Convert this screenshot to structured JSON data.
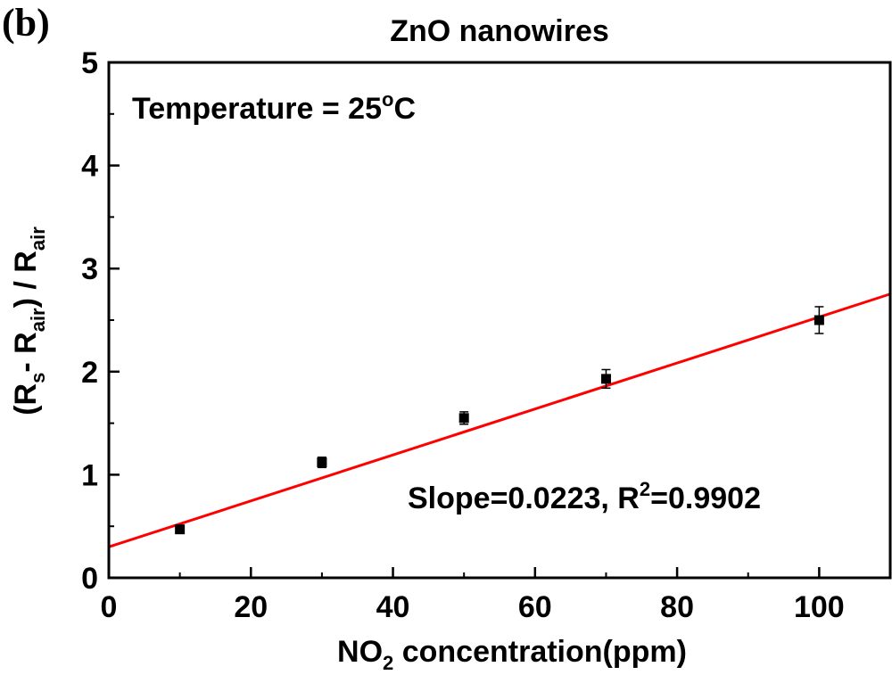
{
  "panel_label": "(b)",
  "chart_data": {
    "type": "scatter",
    "title": "ZnO nanowires",
    "annotation": "Temperature = 25",
    "annotation_deg": "o",
    "annotation_unit": "C",
    "fit_text_a": "Slope=0.0223, R",
    "fit_text_sup": "2",
    "fit_text_b": "=0.9902",
    "xlabel_a": "NO",
    "xlabel_sub": "2",
    "xlabel_b": " concentration(ppm)",
    "ylabel": {
      "p1": "(R",
      "s1": "s",
      "p2": "- R",
      "s2": "air",
      "p3": ") / R",
      "s3": "air"
    },
    "xlim": [
      0,
      110
    ],
    "ylim": [
      0,
      5
    ],
    "xticks": [
      0,
      20,
      40,
      60,
      80,
      100
    ],
    "yticks": [
      0,
      1,
      2,
      3,
      4,
      5
    ],
    "points": [
      {
        "x": 10,
        "y": 0.47,
        "err": 0.03
      },
      {
        "x": 30,
        "y": 1.12,
        "err": 0.05
      },
      {
        "x": 50,
        "y": 1.55,
        "err": 0.06
      },
      {
        "x": 70,
        "y": 1.93,
        "err": 0.09
      },
      {
        "x": 100,
        "y": 2.5,
        "err": 0.13
      }
    ],
    "fit": {
      "slope": 0.0223,
      "intercept": 0.3,
      "r2": 0.9902,
      "color": "#ff0000"
    },
    "marker_color": "#000000",
    "grid": false
  }
}
